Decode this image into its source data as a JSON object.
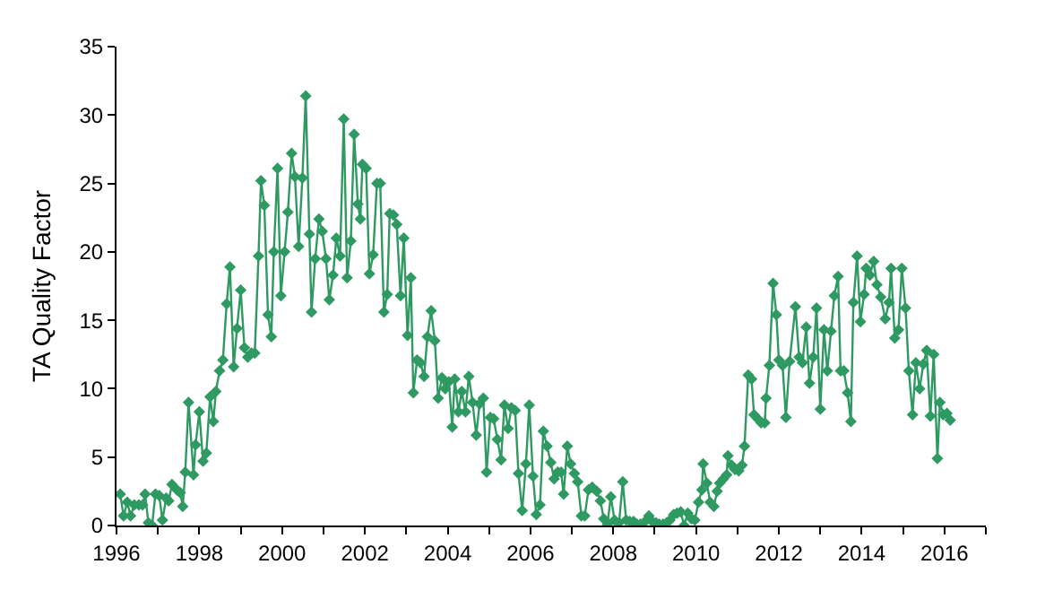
{
  "chart_data": {
    "type": "line",
    "ylabel": "TA Quality Factor",
    "xlim": [
      1996,
      2017
    ],
    "xticks": [
      1996,
      {
        "value": 1997,
        "label": null
      },
      1998,
      {
        "value": 1999,
        "label": null
      },
      2000,
      {
        "value": 2001,
        "label": null
      },
      2002,
      {
        "value": 2003,
        "label": null
      },
      2004,
      {
        "value": 2005,
        "label": null
      },
      2006,
      {
        "value": 2007,
        "label": null
      },
      2008,
      {
        "value": 2009,
        "label": null
      },
      2010,
      {
        "value": 2011,
        "label": null
      },
      2012,
      {
        "value": 2013,
        "label": null
      },
      2014,
      {
        "value": 2015,
        "label": null
      },
      2016,
      {
        "value": 2017,
        "label": null
      }
    ],
    "ylim": [
      0,
      35
    ],
    "yticks": [
      0,
      5,
      10,
      15,
      20,
      25,
      30,
      35
    ],
    "grid": false,
    "marker": "diamond",
    "line_style": "solid",
    "series": [
      {
        "color": "#2e9a62",
        "x": [
          1996.09,
          1996.17,
          1996.26,
          1996.34,
          1996.43,
          1996.54,
          1996.63,
          1996.69,
          1996.77,
          1996.86,
          1996.94,
          1997.03,
          1997.11,
          1997.2,
          1997.26,
          1997.34,
          1997.46,
          1997.54,
          1997.6,
          1997.66,
          1997.74,
          1997.86,
          1997.91,
          1998.0,
          1998.09,
          1998.17,
          1998.26,
          1998.34,
          1998.4,
          1998.49,
          1998.57,
          1998.66,
          1998.74,
          1998.83,
          1998.91,
          1999.0,
          1999.09,
          1999.17,
          1999.26,
          1999.34,
          1999.43,
          1999.49,
          1999.57,
          1999.66,
          1999.74,
          1999.8,
          1999.89,
          1999.97,
          2000.06,
          2000.14,
          2000.23,
          2000.31,
          2000.4,
          2000.49,
          2000.57,
          2000.66,
          2000.71,
          2000.8,
          2000.89,
          2000.97,
          2001.06,
          2001.14,
          2001.23,
          2001.31,
          2001.4,
          2001.49,
          2001.57,
          2001.66,
          2001.74,
          2001.83,
          2001.89,
          2001.94,
          2002.03,
          2002.11,
          2002.2,
          2002.29,
          2002.37,
          2002.46,
          2002.54,
          2002.6,
          2002.69,
          2002.77,
          2002.86,
          2002.94,
          2003.03,
          2003.11,
          2003.17,
          2003.26,
          2003.34,
          2003.43,
          2003.51,
          2003.6,
          2003.69,
          2003.77,
          2003.86,
          2003.94,
          2004.03,
          2004.11,
          2004.17,
          2004.26,
          2004.34,
          2004.43,
          2004.51,
          2004.6,
          2004.69,
          2004.77,
          2004.86,
          2004.94,
          2005.03,
          2005.11,
          2005.2,
          2005.29,
          2005.37,
          2005.46,
          2005.54,
          2005.63,
          2005.71,
          2005.8,
          2005.89,
          2005.97,
          2006.06,
          2006.14,
          2006.23,
          2006.31,
          2006.4,
          2006.49,
          2006.57,
          2006.66,
          2006.74,
          2006.8,
          2006.89,
          2006.97,
          2007.06,
          2007.14,
          2007.23,
          2007.31,
          2007.4,
          2007.49,
          2007.6,
          2007.69,
          2007.77,
          2007.86,
          2007.94,
          2008.03,
          2008.14,
          2008.23,
          2008.31,
          2008.4,
          2008.49,
          2008.57,
          2008.66,
          2008.77,
          2008.86,
          2008.94,
          2009.03,
          2009.11,
          2009.2,
          2009.29,
          2009.37,
          2009.46,
          2009.54,
          2009.63,
          2009.71,
          2009.8,
          2009.89,
          2009.97,
          2010.06,
          2010.14,
          2010.17,
          2010.26,
          2010.34,
          2010.43,
          2010.51,
          2010.57,
          2010.66,
          2010.74,
          2010.77,
          2010.86,
          2010.94,
          2011.03,
          2011.11,
          2011.17,
          2011.26,
          2011.34,
          2011.4,
          2011.49,
          2011.57,
          2011.66,
          2011.69,
          2011.77,
          2011.86,
          2011.94,
          2012.0,
          2012.09,
          2012.17,
          2012.26,
          2012.4,
          2012.49,
          2012.57,
          2012.66,
          2012.74,
          2012.83,
          2012.91,
          2013.0,
          2013.09,
          2013.17,
          2013.26,
          2013.34,
          2013.43,
          2013.49,
          2013.57,
          2013.66,
          2013.74,
          2013.8,
          2013.89,
          2013.97,
          2014.06,
          2014.11,
          2014.2,
          2014.29,
          2014.37,
          2014.46,
          2014.57,
          2014.66,
          2014.71,
          2014.8,
          2014.89,
          2014.97,
          2015.06,
          2015.14,
          2015.23,
          2015.31,
          2015.4,
          2015.49,
          2015.57,
          2015.66,
          2015.74,
          2015.83,
          2015.89,
          2015.97,
          2016.06,
          2016.14
        ],
        "values": [
          2.3,
          0.7,
          1.7,
          0.7,
          1.5,
          1.5,
          1.5,
          2.3,
          0.2,
          0,
          2.3,
          2.2,
          0.4,
          2.0,
          1.8,
          3.0,
          2.6,
          2.4,
          1.4,
          3.9,
          9.0,
          3.7,
          5.9,
          8.3,
          4.7,
          5.3,
          9.4,
          7.6,
          9.8,
          11.3,
          12.1,
          16.2,
          18.9,
          11.6,
          14.4,
          17.2,
          13.0,
          12.3,
          12.6,
          12.6,
          19.7,
          25.2,
          23.4,
          15.4,
          13.8,
          20.0,
          26.1,
          16.8,
          20.0,
          22.9,
          27.2,
          25.5,
          20.4,
          25.4,
          31.4,
          21.3,
          15.6,
          19.5,
          22.4,
          21.5,
          19.5,
          16.5,
          18.3,
          21.0,
          19.7,
          29.7,
          18.1,
          20.8,
          28.6,
          23.5,
          22.4,
          26.4,
          26.1,
          18.4,
          19.8,
          25.0,
          25.0,
          15.6,
          16.9,
          22.8,
          22.7,
          22.0,
          16.8,
          21.0,
          13.9,
          18.1,
          9.7,
          12.1,
          11.9,
          10.9,
          13.8,
          15.7,
          13.5,
          9.3,
          10.8,
          10.0,
          10.5,
          7.2,
          10.7,
          8.3,
          9.8,
          8.3,
          10.9,
          9.0,
          6.6,
          8.9,
          9.3,
          3.9,
          7.9,
          7.8,
          6.3,
          4.8,
          8.8,
          7.1,
          8.6,
          8.4,
          3.8,
          1.1,
          4.5,
          8.8,
          3.6,
          0.8,
          1.5,
          6.9,
          5.8,
          4.6,
          3.4,
          3.9,
          3.9,
          2.3,
          5.8,
          4.5,
          3.8,
          3.2,
          0.7,
          0.7,
          2.6,
          2.8,
          2.5,
          1.8,
          0.5,
          0.1,
          2.1,
          0.4,
          0.2,
          3.2,
          0.4,
          0.3,
          0.3,
          0.1,
          0.1,
          0.3,
          0.7,
          0.3,
          0.2,
          0.1,
          0.1,
          0.2,
          0.4,
          0.8,
          0.9,
          1.0,
          0,
          0.9,
          0.5,
          0.4,
          1.7,
          2.6,
          4.5,
          3.1,
          1.7,
          1.4,
          2.5,
          3.1,
          3.4,
          3.7,
          5.1,
          4.4,
          4.1,
          4.0,
          4.4,
          5.8,
          11.0,
          10.7,
          8.1,
          7.8,
          7.5,
          7.5,
          9.3,
          11.7,
          17.7,
          15.4,
          12.1,
          11.7,
          7.9,
          12.0,
          16.0,
          12.3,
          11.9,
          14.5,
          10.4,
          12.3,
          15.9,
          8.5,
          14.3,
          11.3,
          14.2,
          16.8,
          18.2,
          11.3,
          11.3,
          9.7,
          7.6,
          16.3,
          19.7,
          14.9,
          16.9,
          18.8,
          18.3,
          19.3,
          17.6,
          16.7,
          15.1,
          16.3,
          18.8,
          13.7,
          14.3,
          18.8,
          15.9,
          11.3,
          8.1,
          11.9,
          10.0,
          11.8,
          12.8,
          8.0,
          12.5,
          4.9,
          9.0,
          8.1,
          8.2,
          7.7
        ]
      }
    ]
  }
}
